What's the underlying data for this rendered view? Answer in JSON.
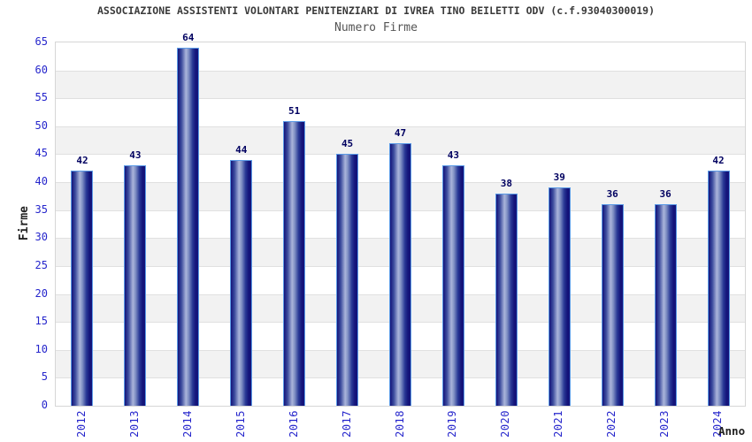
{
  "header": {
    "title": "ASSOCIAZIONE ASSISTENTI VOLONTARI PENITENZIARI DI IVREA TINO BEILETTI ODV (c.f.93040300019)",
    "subtitle": "Numero Firme"
  },
  "chart_data": {
    "type": "bar",
    "title": "Numero Firme",
    "categories": [
      "2012",
      "2013",
      "2014",
      "2015",
      "2016",
      "2017",
      "2018",
      "2019",
      "2020",
      "2021",
      "2022",
      "2023",
      "2024"
    ],
    "values": [
      42,
      43,
      64,
      44,
      51,
      45,
      47,
      43,
      38,
      39,
      36,
      36,
      42
    ],
    "xlabel": "Anno",
    "ylabel": "Firme",
    "ylim": [
      0,
      65
    ],
    "ytick_step": 5,
    "grid": "horizontal lines with alternating shaded bands",
    "legend": "none",
    "colors": {
      "bar_dark": "#14147a",
      "bar_mid": "#3c4c9e",
      "bar_light": "#aab4da",
      "bar_border": "#5a9ae6",
      "tick_label": "#2626cc",
      "value_label": "#000060",
      "axis_title": "#222222",
      "title_color": "#3a3a3a",
      "subtitle_color": "#555555",
      "band_gray": "#f2f2f2",
      "grid_line": "#e0e0e0",
      "plot_border": "#d6d6d6"
    }
  }
}
